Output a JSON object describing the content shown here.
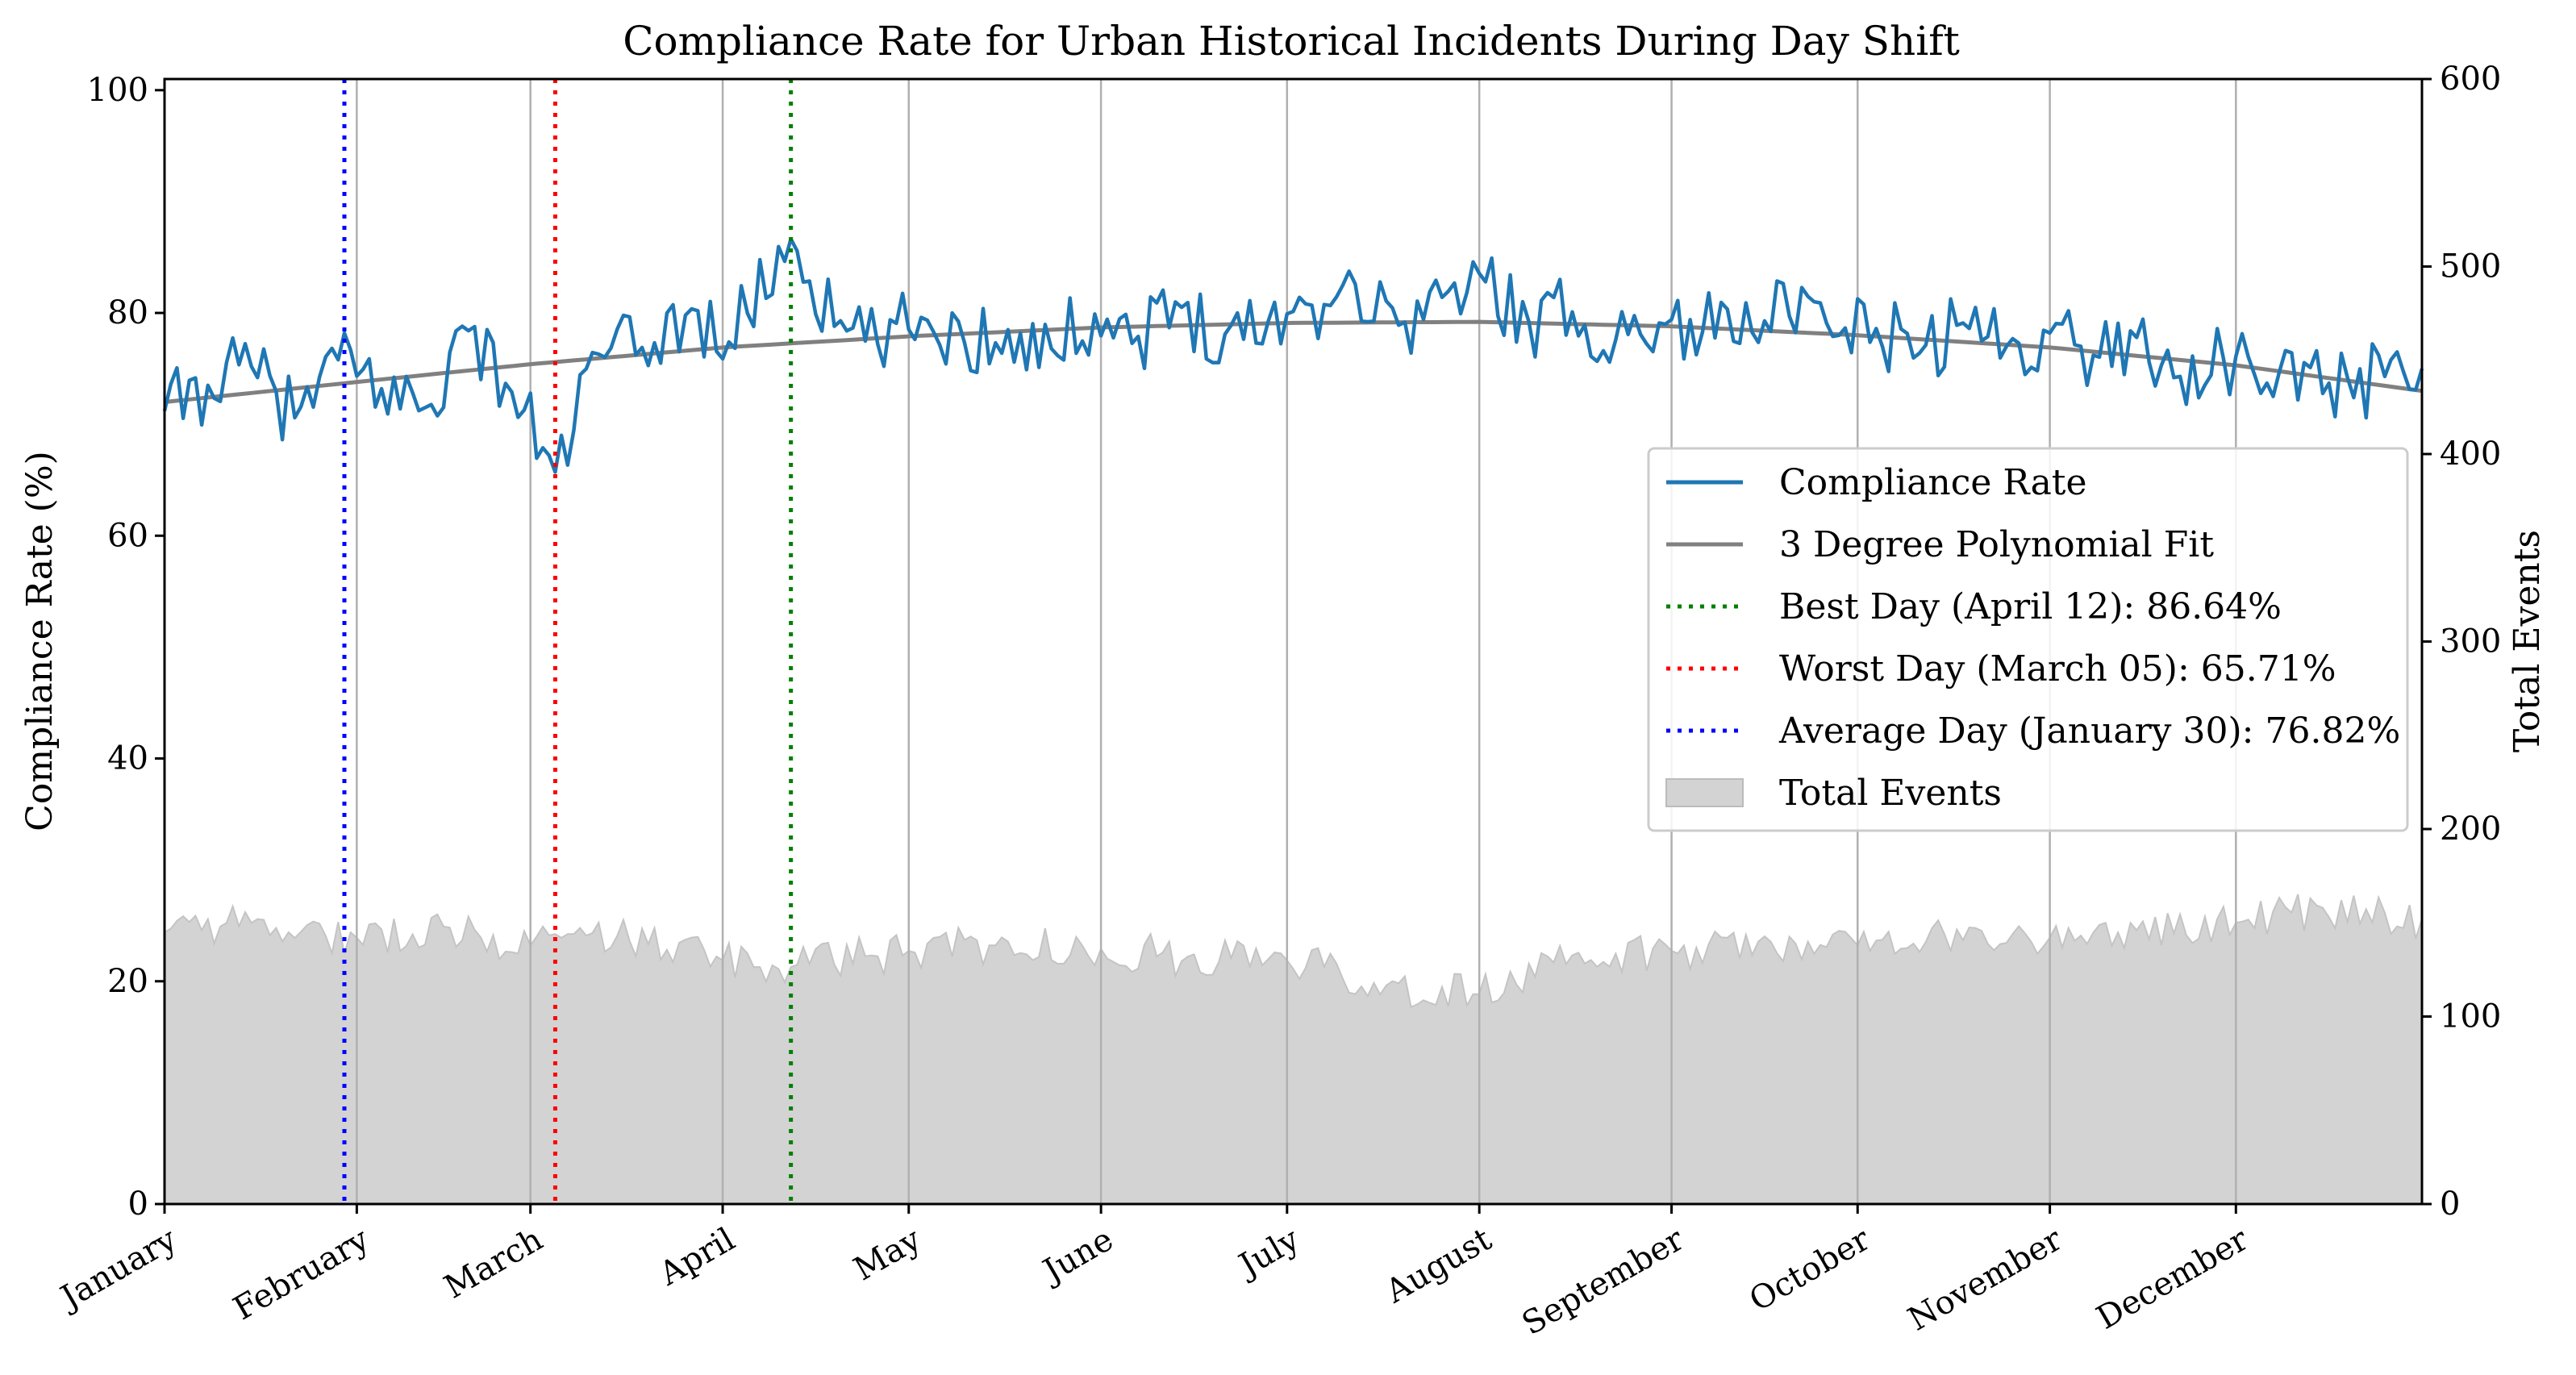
{
  "chart_data": {
    "type": "line",
    "title": "Compliance Rate for Urban Historical Incidents During Day Shift",
    "ylabel": "Compliance Rate (%)",
    "y2label": "Total Events",
    "ylim": [
      0,
      101
    ],
    "y2lim": [
      0,
      600
    ],
    "yticks": [
      0,
      20,
      40,
      60,
      80,
      100
    ],
    "y2ticks": [
      0,
      100,
      200,
      300,
      400,
      500,
      600
    ],
    "x_start": "January 01",
    "x_end": "December 31",
    "xtick_labels": [
      "January",
      "February",
      "March",
      "April",
      "May",
      "June",
      "July",
      "August",
      "September",
      "October",
      "November",
      "December"
    ],
    "grid": "vertical at month starts",
    "legend_placement": "center-right",
    "series": [
      {
        "name": "Compliance Rate",
        "style": "line",
        "axis": "left",
        "color": "#1f77b4",
        "monthly_points": [
          {
            "x": "January 01",
            "y": 71.2
          },
          {
            "x": "January 08",
            "y": 73.5
          },
          {
            "x": "January 15",
            "y": 75.2
          },
          {
            "x": "January 22",
            "y": 70.6
          },
          {
            "x": "January 29",
            "y": 75.8
          },
          {
            "x": "February 05",
            "y": 73.2
          },
          {
            "x": "February 12",
            "y": 71.5
          },
          {
            "x": "February 19",
            "y": 78.4
          },
          {
            "x": "February 26",
            "y": 72.9
          },
          {
            "x": "March 05",
            "y": 65.71
          },
          {
            "x": "March 12",
            "y": 76.3
          },
          {
            "x": "March 19",
            "y": 76.9
          },
          {
            "x": "March 26",
            "y": 79.8
          },
          {
            "x": "April 02",
            "y": 77.4
          },
          {
            "x": "April 12",
            "y": 86.64
          },
          {
            "x": "April 19",
            "y": 78.8
          },
          {
            "x": "April 26",
            "y": 77.2
          },
          {
            "x": "May 03",
            "y": 79.6
          },
          {
            "x": "May 10",
            "y": 77.3
          },
          {
            "x": "May 17",
            "y": 78.5
          },
          {
            "x": "May 24",
            "y": 76.8
          },
          {
            "x": "May 31",
            "y": 79.9
          },
          {
            "x": "June 07",
            "y": 77.9
          },
          {
            "x": "June 14",
            "y": 80.5
          },
          {
            "x": "June 21",
            "y": 78.1
          },
          {
            "x": "June 28",
            "y": 79.3
          },
          {
            "x": "July 05",
            "y": 80.7
          },
          {
            "x": "July 12",
            "y": 82.6
          },
          {
            "x": "July 19",
            "y": 78.9
          },
          {
            "x": "July 26",
            "y": 81.4
          },
          {
            "x": "August 02",
            "y": 82.8
          },
          {
            "x": "August 09",
            "y": 79.2
          },
          {
            "x": "August 16",
            "y": 80.1
          },
          {
            "x": "August 23",
            "y": 77.6
          },
          {
            "x": "August 30",
            "y": 79.1
          },
          {
            "x": "September 06",
            "y": 78.3
          },
          {
            "x": "September 13",
            "y": 80.9
          },
          {
            "x": "September 20",
            "y": 79.7
          },
          {
            "x": "September 27",
            "y": 77.9
          },
          {
            "x": "October 04",
            "y": 78.6
          },
          {
            "x": "October 11",
            "y": 76.4
          },
          {
            "x": "October 18",
            "y": 79.1
          },
          {
            "x": "October 25",
            "y": 77.0
          },
          {
            "x": "November 01",
            "y": 78.2
          },
          {
            "x": "November 08",
            "y": 76.2
          },
          {
            "x": "November 15",
            "y": 77.8
          },
          {
            "x": "November 22",
            "y": 74.3
          },
          {
            "x": "November 29",
            "y": 75.9
          },
          {
            "x": "December 06",
            "y": 73.7
          },
          {
            "x": "December 13",
            "y": 75.1
          },
          {
            "x": "December 20",
            "y": 72.4
          },
          {
            "x": "December 27",
            "y": 76.5
          },
          {
            "x": "December 31",
            "y": 75.0
          }
        ]
      },
      {
        "name": "3 Degree Polynomial Fit",
        "style": "line",
        "axis": "left",
        "color": "#808080",
        "points": [
          {
            "x": "January 01",
            "y": 72.0
          },
          {
            "x": "February 01",
            "y": 73.8
          },
          {
            "x": "March 01",
            "y": 75.4
          },
          {
            "x": "April 01",
            "y": 76.9
          },
          {
            "x": "May 01",
            "y": 77.9
          },
          {
            "x": "June 01",
            "y": 78.7
          },
          {
            "x": "July 01",
            "y": 79.1
          },
          {
            "x": "August 01",
            "y": 79.2
          },
          {
            "x": "September 01",
            "y": 78.8
          },
          {
            "x": "October 01",
            "y": 78.0
          },
          {
            "x": "November 01",
            "y": 76.9
          },
          {
            "x": "December 01",
            "y": 75.3
          },
          {
            "x": "December 31",
            "y": 73.0
          }
        ]
      },
      {
        "name": "Total Events",
        "style": "area",
        "axis": "right",
        "color": "#d3d3d3",
        "monthly_points": [
          {
            "x": "January 01",
            "y": 145
          },
          {
            "x": "January 15",
            "y": 150
          },
          {
            "x": "February 01",
            "y": 142
          },
          {
            "x": "February 15",
            "y": 148
          },
          {
            "x": "March 01",
            "y": 138
          },
          {
            "x": "March 15",
            "y": 143
          },
          {
            "x": "April 01",
            "y": 130
          },
          {
            "x": "April 15",
            "y": 128
          },
          {
            "x": "May 01",
            "y": 135
          },
          {
            "x": "May 15",
            "y": 138
          },
          {
            "x": "June 01",
            "y": 136
          },
          {
            "x": "June 15",
            "y": 132
          },
          {
            "x": "July 01",
            "y": 130
          },
          {
            "x": "July 15",
            "y": 118
          },
          {
            "x": "August 01",
            "y": 112
          },
          {
            "x": "August 15",
            "y": 128
          },
          {
            "x": "September 01",
            "y": 135
          },
          {
            "x": "September 15",
            "y": 140
          },
          {
            "x": "October 01",
            "y": 138
          },
          {
            "x": "October 15",
            "y": 144
          },
          {
            "x": "November 01",
            "y": 142
          },
          {
            "x": "November 15",
            "y": 146
          },
          {
            "x": "December 01",
            "y": 150
          },
          {
            "x": "December 15",
            "y": 158
          },
          {
            "x": "December 31",
            "y": 152
          }
        ]
      }
    ],
    "reference_lines": [
      {
        "label": "Best Day (April 12): 86.64%",
        "x": "April 12",
        "color": "#008000",
        "style": "dotted"
      },
      {
        "label": "Worst Day (March 05): 65.71%",
        "x": "March 05",
        "color": "#ff0000",
        "style": "dotted"
      },
      {
        "label": "Average Day (January 30): 76.82%",
        "x": "January 30",
        "color": "#0000ff",
        "style": "dotted"
      }
    ]
  }
}
